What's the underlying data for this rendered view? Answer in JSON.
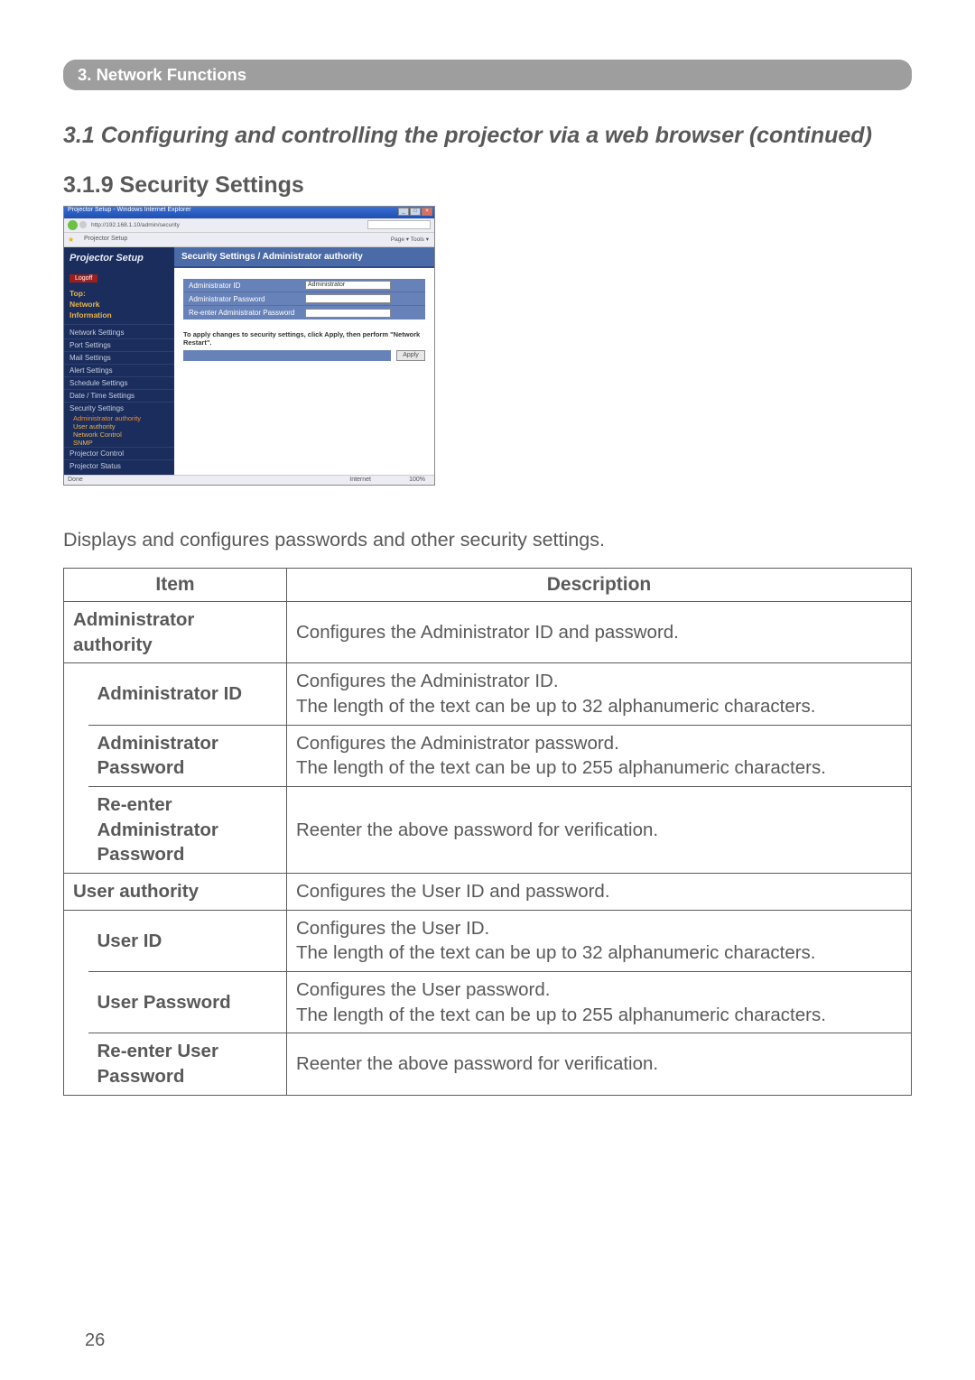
{
  "header": {
    "title": "3. Network Functions"
  },
  "section_title": "3.1 Configuring and controlling the projector via a web browser (continued)",
  "subsection_title": "3.1.9 Security Settings",
  "screenshot": {
    "titlebar": "Projector Setup - Windows Internet Explorer",
    "win_btn_min": "_",
    "win_btn_max": "□",
    "win_btn_close": "×",
    "addr": "http://192.168.1.10/admin/security",
    "star": "★",
    "tab": "Projector Setup",
    "tools": "Page ▾  Tools ▾",
    "brand": "Projector Setup",
    "logoff": "Logoff",
    "nav_top": "Top:",
    "nav_net": "Network",
    "nav_info": "Information",
    "side": {
      "a": "Network Settings",
      "b": "Port Settings",
      "c": "Mail Settings",
      "d": "Alert Settings",
      "e": "Schedule Settings",
      "f": "Date / Time Settings",
      "g": "Security Settings",
      "g1": "Administrator authority",
      "g2": "User authority",
      "g3": "Network Control",
      "g4": "SNMP",
      "h": "Projector Control",
      "i": "Projector Status"
    },
    "panel_title": "Security Settings / Administrator authority",
    "form": {
      "r1_label": "Administrator ID",
      "r1_value": "Administrator",
      "r2_label": "Administrator Password",
      "r3_label": "Re-enter Administrator Password"
    },
    "apply_text": "To apply changes to security settings, click Apply, then perform \"Network Restart\".",
    "apply_btn": "Apply",
    "status_left": "Done",
    "status_r1": "Internet",
    "status_r2": "100%"
  },
  "intro": "Displays and configures passwords and other security settings.",
  "table": {
    "col_item": "Item",
    "col_desc": "Description",
    "rows": {
      "admin_auth": {
        "item": "Administrator authority",
        "desc": "Configures the Administrator ID and password."
      },
      "admin_id": {
        "item": "Administrator ID",
        "desc": "Configures the Administrator ID.\nThe length of the text can be up to 32 alphanumeric characters."
      },
      "admin_pw": {
        "item": "Administrator Password",
        "desc": "Configures the Administrator password.\nThe length of the text can be up to 255 alphanumeric characters."
      },
      "admin_repw": {
        "item": "Re-enter Administrator Password",
        "desc": "Reenter the above password for verification."
      },
      "user_auth": {
        "item": "User authority",
        "desc": "Configures the User ID and password."
      },
      "user_id": {
        "item": "User ID",
        "desc": "Configures the User ID.\nThe length of the text can be up to 32 alphanumeric characters."
      },
      "user_pw": {
        "item": "User Password",
        "desc": "Configures the User password.\nThe length of the text can be up to 255 alphanumeric characters."
      },
      "user_repw": {
        "item": "Re-enter User Password",
        "desc": "Reenter the above password for verification."
      }
    }
  },
  "page_num": "26"
}
